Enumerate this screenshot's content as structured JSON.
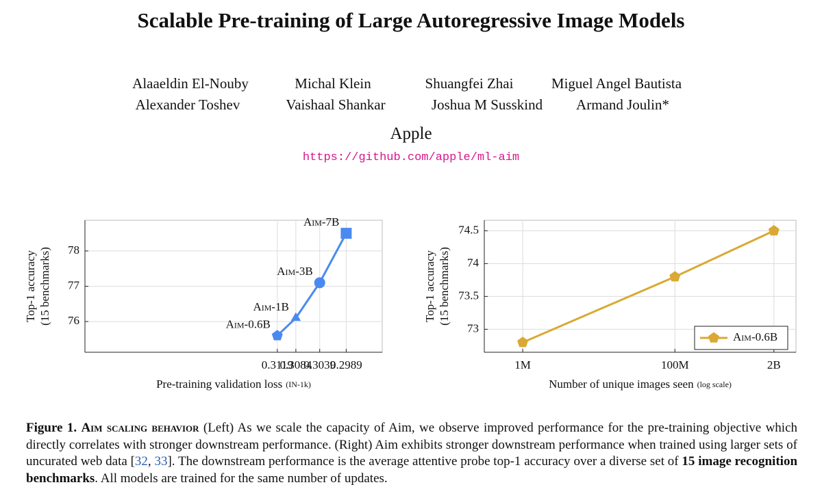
{
  "title": "Scalable Pre-training of Large Autoregressive Image Models",
  "authors": [
    [
      "Alaaeldin El-Nouby",
      "Michal Klein",
      "Shuangfei Zhai",
      "Miguel Angel Bautista"
    ],
    [
      "Alexander Toshev",
      "Vaishaal Shankar",
      "Joshua M Susskind",
      "Armand Joulin*"
    ]
  ],
  "affiliation": "Apple",
  "url": "https://github.com/apple/ml-aim",
  "chart_data": [
    {
      "type": "line",
      "ylabel": "Top-1 accuracy",
      "ylabel_note": "(15 benchmarks)",
      "xlabel": "Pre-training validation loss",
      "xlabel_note": "(IN-1k)",
      "x": [
        0.3119,
        0.3084,
        0.3039,
        0.2989
      ],
      "values": [
        75.6,
        76.1,
        77.1,
        78.5
      ],
      "point_labels": [
        "Aim-0.6B",
        "Aim-1B",
        "Aim-3B",
        "Aim-7B"
      ],
      "markers": [
        "pentagon",
        "triangle",
        "circle",
        "square"
      ],
      "color": "#4a8af0",
      "xlim": [
        0.3482,
        0.2921
      ],
      "xticks": [
        0.3119,
        0.3084,
        0.3039,
        0.2989
      ],
      "ylim": [
        75.13,
        78.87
      ],
      "yticks": [
        76,
        77,
        78
      ],
      "grid": true
    },
    {
      "type": "line",
      "ylabel": "Top-1 accuracy",
      "ylabel_note": "(15 benchmarks)",
      "xlabel": "Number of unique images seen",
      "xlabel_note": "(log scale)",
      "x": [
        1000000,
        100000000,
        2000000000
      ],
      "series": [
        {
          "name": "Aim-0.6B",
          "color": "#d9a933",
          "marker": "pentagon",
          "values": [
            72.8,
            73.8,
            74.5
          ]
        }
      ],
      "xscale": "log",
      "xlim": [
        312600,
        3900000000
      ],
      "xticks": [
        {
          "value": 1000000,
          "label": "1M"
        },
        {
          "value": 100000000,
          "label": "100M"
        },
        {
          "value": 2000000000,
          "label": "2B"
        }
      ],
      "ylim": [
        72.65,
        74.66
      ],
      "yticks": [
        73,
        73.5,
        74,
        74.5
      ],
      "grid": true,
      "legend": "lower right"
    }
  ],
  "caption": {
    "label": "Figure 1.",
    "heading": "Aim scaling behavior",
    "body_1": "(Left) As we scale the capacity of Aim, we observe improved performance for the pre-training objective which directly correlates with stronger downstream performance. (Right) Aim exhibits stronger downstream performance when trained using larger sets of uncurated web data [",
    "ref_1": "32",
    "body_2": ",",
    "ref_2": "33",
    "body_3": "]. The downstream performance is the average attentive probe top-1 accuracy over a diverse set of",
    "emphasis": "15 image recognition benchmarks",
    "body_4": ". All models are trained for the same number of updates."
  }
}
